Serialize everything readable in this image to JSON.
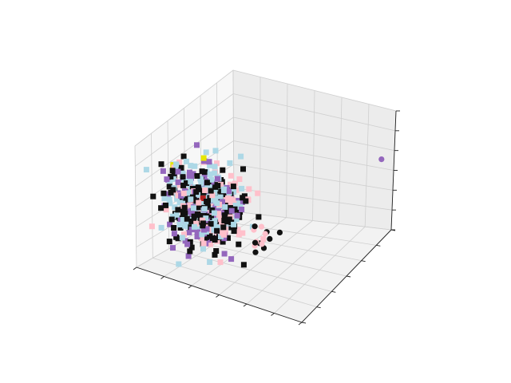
{
  "chart_data": {
    "type": "scatter",
    "projection": "3d",
    "title": "",
    "xlabel": "",
    "ylabel": "",
    "zlabel": "",
    "xlim": [
      0,
      1
    ],
    "ylim": [
      0,
      1
    ],
    "zlim": [
      0,
      1
    ],
    "grid": true,
    "legend": "none",
    "tick_labels_shown": false,
    "series": [
      {
        "marker": "square",
        "color": "#add8e6",
        "cluster_center": [
          0.3,
          0.2,
          0.55
        ],
        "approx_count": 180
      },
      {
        "marker": "square",
        "color": "#ffc0cb",
        "cluster_center": [
          0.32,
          0.22,
          0.5
        ],
        "approx_count": 120
      },
      {
        "marker": "square",
        "color": "#9467bd",
        "cluster_center": [
          0.28,
          0.22,
          0.5
        ],
        "approx_count": 140
      },
      {
        "marker": "square",
        "color": "#111111",
        "cluster_center": [
          0.3,
          0.2,
          0.5
        ],
        "approx_count": 220
      },
      {
        "marker": "square",
        "color": "#b22222",
        "cluster_center": [
          0.3,
          0.2,
          0.5
        ],
        "approx_count": 4
      },
      {
        "marker": "square",
        "color": "#e6e600",
        "cluster_center": [
          0.33,
          0.2,
          0.86
        ],
        "approx_count": 2
      },
      {
        "marker": "circle",
        "color": "#111111",
        "cluster_center": [
          0.6,
          0.34,
          0.28
        ],
        "approx_count": 8
      },
      {
        "marker": "circle",
        "color": "#ffc0cb",
        "cluster_center": [
          0.55,
          0.3,
          0.3
        ],
        "approx_count": 6
      },
      {
        "marker": "circle",
        "color": "#9467bd",
        "points": [
          [
            0.95,
            0.95,
            0.62
          ]
        ]
      }
    ]
  }
}
